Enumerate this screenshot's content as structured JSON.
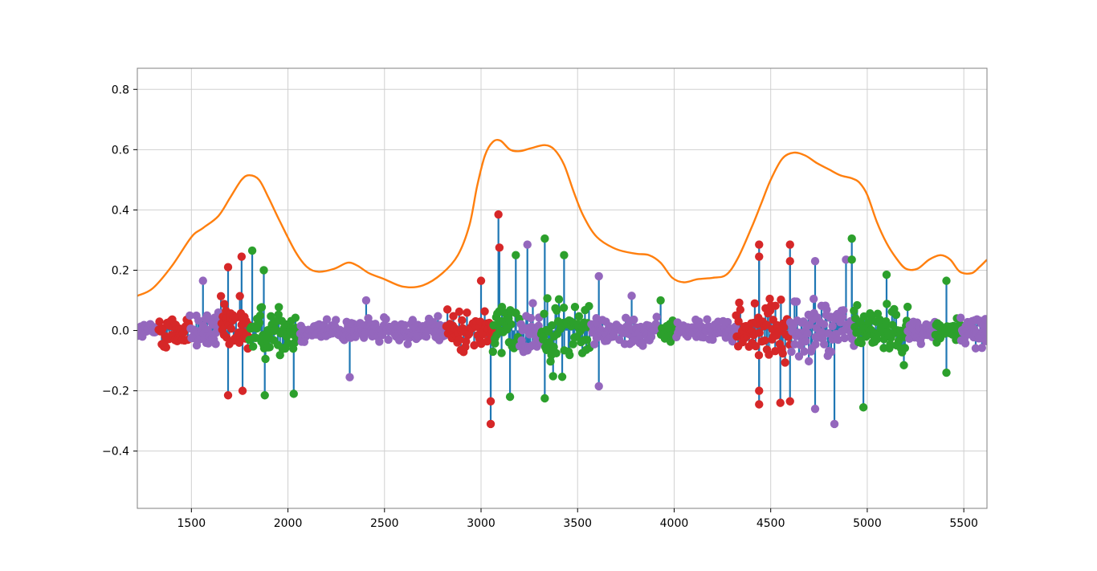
{
  "chart_data": {
    "type": "line",
    "xlim": [
      1220,
      5620
    ],
    "ylim": [
      -0.59,
      0.87
    ],
    "grid": true,
    "xticks": [
      1500,
      2000,
      2500,
      3000,
      3500,
      4000,
      4500,
      5000,
      5500
    ],
    "xtick_labels": [
      "1500",
      "2000",
      "2500",
      "3000",
      "3500",
      "4000",
      "4500",
      "5000",
      "5500"
    ],
    "yticks": [
      -0.4,
      -0.2,
      0.0,
      0.2,
      0.4,
      0.6,
      0.8
    ],
    "ytick_labels": [
      "−0.4",
      "−0.2",
      "0.0",
      "0.2",
      "0.4",
      "0.6",
      "0.8"
    ],
    "colors": {
      "stem": "#1f77b4",
      "envelope": "#ff7f0e",
      "segment_a": "#d62728",
      "segment_b": "#9467bd",
      "segment_c": "#2ca02c",
      "grid": "#d0d0d0",
      "axes": "#808080"
    },
    "envelope": {
      "x": [
        1220,
        1300,
        1400,
        1500,
        1560,
        1640,
        1700,
        1760,
        1800,
        1850,
        1900,
        1960,
        2040,
        2100,
        2160,
        2240,
        2310,
        2360,
        2420,
        2500,
        2600,
        2700,
        2800,
        2880,
        2940,
        2980,
        3020,
        3060,
        3100,
        3150,
        3200,
        3260,
        3330,
        3380,
        3430,
        3480,
        3530,
        3600,
        3700,
        3800,
        3870,
        3930,
        3990,
        4050,
        4120,
        4200,
        4270,
        4330,
        4400,
        4450,
        4500,
        4560,
        4620,
        4680,
        4740,
        4800,
        4860,
        4920,
        4960,
        5000,
        5050,
        5100,
        5150,
        5200,
        5260,
        5320,
        5380,
        5430,
        5480,
        5540,
        5580,
        5620
      ],
      "y": [
        0.115,
        0.14,
        0.215,
        0.31,
        0.34,
        0.38,
        0.44,
        0.5,
        0.515,
        0.5,
        0.44,
        0.36,
        0.26,
        0.21,
        0.195,
        0.205,
        0.225,
        0.215,
        0.19,
        0.17,
        0.145,
        0.15,
        0.19,
        0.25,
        0.35,
        0.48,
        0.58,
        0.625,
        0.63,
        0.6,
        0.595,
        0.605,
        0.615,
        0.6,
        0.55,
        0.46,
        0.38,
        0.31,
        0.27,
        0.255,
        0.25,
        0.225,
        0.175,
        0.16,
        0.17,
        0.175,
        0.185,
        0.24,
        0.34,
        0.42,
        0.5,
        0.57,
        0.59,
        0.58,
        0.555,
        0.535,
        0.515,
        0.505,
        0.49,
        0.45,
        0.36,
        0.29,
        0.24,
        0.205,
        0.205,
        0.235,
        0.25,
        0.235,
        0.195,
        0.19,
        0.21,
        0.235
      ]
    },
    "segments": [
      {
        "color_key": "segment_b",
        "x_start": 1220,
        "x_end": 1330,
        "amp": 0.04
      },
      {
        "color_key": "segment_a",
        "x_start": 1330,
        "x_end": 1490,
        "amp": 0.09
      },
      {
        "color_key": "segment_b",
        "x_start": 1490,
        "x_end": 1650,
        "amp": 0.1
      },
      {
        "color_key": "segment_a",
        "x_start": 1650,
        "x_end": 1800,
        "amp": 0.15
      },
      {
        "color_key": "segment_c",
        "x_start": 1800,
        "x_end": 2060,
        "amp": 0.13
      },
      {
        "color_key": "segment_b",
        "x_start": 2060,
        "x_end": 2820,
        "amp": 0.06
      },
      {
        "color_key": "segment_a",
        "x_start": 2820,
        "x_end": 3060,
        "amp": 0.1
      },
      {
        "color_key": "segment_c",
        "x_start": 3060,
        "x_end": 3200,
        "amp": 0.14
      },
      {
        "color_key": "segment_b",
        "x_start": 3200,
        "x_end": 3310,
        "amp": 0.13
      },
      {
        "color_key": "segment_c",
        "x_start": 3310,
        "x_end": 3570,
        "amp": 0.16
      },
      {
        "color_key": "segment_b",
        "x_start": 3570,
        "x_end": 3930,
        "amp": 0.07
      },
      {
        "color_key": "segment_c",
        "x_start": 3930,
        "x_end": 4010,
        "amp": 0.05
      },
      {
        "color_key": "segment_b",
        "x_start": 4010,
        "x_end": 4320,
        "amp": 0.05
      },
      {
        "color_key": "segment_a",
        "x_start": 4320,
        "x_end": 4600,
        "amp": 0.13
      },
      {
        "color_key": "segment_b",
        "x_start": 4600,
        "x_end": 4930,
        "amp": 0.14
      },
      {
        "color_key": "segment_c",
        "x_start": 4930,
        "x_end": 5210,
        "amp": 0.12
      },
      {
        "color_key": "segment_b",
        "x_start": 5210,
        "x_end": 5350,
        "amp": 0.06
      },
      {
        "color_key": "segment_c",
        "x_start": 5350,
        "x_end": 5480,
        "amp": 0.07
      },
      {
        "color_key": "segment_b",
        "x_start": 5480,
        "x_end": 5620,
        "amp": 0.07
      }
    ],
    "peaks": [
      {
        "x": 1690,
        "y": 0.21,
        "color_key": "segment_a"
      },
      {
        "x": 1690,
        "y": -0.215,
        "color_key": "segment_a"
      },
      {
        "x": 1760,
        "y": 0.245,
        "color_key": "segment_a"
      },
      {
        "x": 1765,
        "y": -0.2,
        "color_key": "segment_a"
      },
      {
        "x": 1815,
        "y": 0.265,
        "color_key": "segment_c"
      },
      {
        "x": 1875,
        "y": 0.2,
        "color_key": "segment_c"
      },
      {
        "x": 1880,
        "y": -0.215,
        "color_key": "segment_c"
      },
      {
        "x": 2030,
        "y": -0.21,
        "color_key": "segment_c"
      },
      {
        "x": 1560,
        "y": 0.165,
        "color_key": "segment_b"
      },
      {
        "x": 2320,
        "y": -0.155,
        "color_key": "segment_b"
      },
      {
        "x": 2405,
        "y": 0.1,
        "color_key": "segment_b"
      },
      {
        "x": 3090,
        "y": 0.385,
        "color_key": "segment_a"
      },
      {
        "x": 3095,
        "y": 0.275,
        "color_key": "segment_a"
      },
      {
        "x": 3050,
        "y": -0.31,
        "color_key": "segment_a"
      },
      {
        "x": 3050,
        "y": -0.235,
        "color_key": "segment_a"
      },
      {
        "x": 3000,
        "y": 0.165,
        "color_key": "segment_a"
      },
      {
        "x": 3180,
        "y": 0.25,
        "color_key": "segment_c"
      },
      {
        "x": 3240,
        "y": 0.285,
        "color_key": "segment_b"
      },
      {
        "x": 3330,
        "y": 0.305,
        "color_key": "segment_c"
      },
      {
        "x": 3330,
        "y": -0.225,
        "color_key": "segment_c"
      },
      {
        "x": 3430,
        "y": 0.25,
        "color_key": "segment_c"
      },
      {
        "x": 3150,
        "y": -0.22,
        "color_key": "segment_c"
      },
      {
        "x": 3610,
        "y": 0.18,
        "color_key": "segment_b"
      },
      {
        "x": 3610,
        "y": -0.185,
        "color_key": "segment_b"
      },
      {
        "x": 3780,
        "y": 0.115,
        "color_key": "segment_b"
      },
      {
        "x": 3930,
        "y": 0.1,
        "color_key": "segment_c"
      },
      {
        "x": 4440,
        "y": 0.285,
        "color_key": "segment_a"
      },
      {
        "x": 4440,
        "y": 0.245,
        "color_key": "segment_a"
      },
      {
        "x": 4440,
        "y": -0.245,
        "color_key": "segment_a"
      },
      {
        "x": 4440,
        "y": -0.2,
        "color_key": "segment_a"
      },
      {
        "x": 4600,
        "y": 0.285,
        "color_key": "segment_a"
      },
      {
        "x": 4600,
        "y": 0.23,
        "color_key": "segment_a"
      },
      {
        "x": 4600,
        "y": -0.235,
        "color_key": "segment_a"
      },
      {
        "x": 4550,
        "y": -0.24,
        "color_key": "segment_a"
      },
      {
        "x": 4730,
        "y": 0.23,
        "color_key": "segment_b"
      },
      {
        "x": 4830,
        "y": -0.31,
        "color_key": "segment_b"
      },
      {
        "x": 4730,
        "y": -0.26,
        "color_key": "segment_b"
      },
      {
        "x": 4890,
        "y": 0.235,
        "color_key": "segment_b"
      },
      {
        "x": 4920,
        "y": 0.305,
        "color_key": "segment_c"
      },
      {
        "x": 4920,
        "y": 0.235,
        "color_key": "segment_c"
      },
      {
        "x": 4980,
        "y": -0.255,
        "color_key": "segment_c"
      },
      {
        "x": 5100,
        "y": 0.185,
        "color_key": "segment_c"
      },
      {
        "x": 5410,
        "y": 0.165,
        "color_key": "segment_c"
      },
      {
        "x": 5410,
        "y": -0.14,
        "color_key": "segment_c"
      }
    ]
  }
}
